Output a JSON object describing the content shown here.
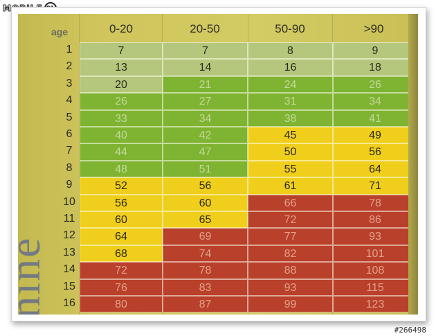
{
  "watermark": {
    "brand": "MOBILE",
    "brand_icon": "01",
    "photo_id": "#266498"
  },
  "side_text": "anine",
  "table": {
    "age_header": "age",
    "columns": [
      "0-20",
      "20-50",
      "50-90",
      ">90"
    ],
    "rows": [
      {
        "label": "1",
        "values": [
          "7",
          "7",
          "8",
          "9"
        ],
        "colors": [
          "lg",
          "lg",
          "lg",
          "lg"
        ]
      },
      {
        "label": "2",
        "values": [
          "13",
          "14",
          "16",
          "18"
        ],
        "colors": [
          "lg",
          "lg",
          "lg",
          "lg"
        ]
      },
      {
        "label": "3",
        "values": [
          "20",
          "21",
          "24",
          "26"
        ],
        "colors": [
          "lg",
          "g",
          "g",
          "g"
        ]
      },
      {
        "label": "4",
        "values": [
          "26",
          "27",
          "31",
          "34"
        ],
        "colors": [
          "g",
          "g",
          "g",
          "g"
        ]
      },
      {
        "label": "5",
        "values": [
          "33",
          "34",
          "38",
          "41"
        ],
        "colors": [
          "g",
          "g",
          "g",
          "g"
        ]
      },
      {
        "label": "6",
        "values": [
          "40",
          "42",
          "45",
          "49"
        ],
        "colors": [
          "g",
          "g",
          "y",
          "y"
        ]
      },
      {
        "label": "7",
        "values": [
          "44",
          "47",
          "50",
          "56"
        ],
        "colors": [
          "g",
          "g",
          "y",
          "y"
        ]
      },
      {
        "label": "8",
        "values": [
          "48",
          "51",
          "55",
          "64"
        ],
        "colors": [
          "g",
          "g",
          "y",
          "y"
        ]
      },
      {
        "label": "9",
        "values": [
          "52",
          "56",
          "61",
          "71"
        ],
        "colors": [
          "y",
          "y",
          "y",
          "y"
        ]
      },
      {
        "label": "10",
        "values": [
          "56",
          "60",
          "66",
          "78"
        ],
        "colors": [
          "y",
          "y",
          "r",
          "r"
        ]
      },
      {
        "label": "11",
        "values": [
          "60",
          "65",
          "72",
          "86"
        ],
        "colors": [
          "y",
          "y",
          "r",
          "r"
        ]
      },
      {
        "label": "12",
        "values": [
          "64",
          "69",
          "77",
          "93"
        ],
        "colors": [
          "y",
          "r",
          "r",
          "r"
        ]
      },
      {
        "label": "13",
        "values": [
          "68",
          "74",
          "82",
          "101"
        ],
        "colors": [
          "y",
          "r",
          "r",
          "r"
        ]
      },
      {
        "label": "14",
        "values": [
          "72",
          "78",
          "88",
          "108"
        ],
        "colors": [
          "r",
          "r",
          "r",
          "r"
        ]
      },
      {
        "label": "15",
        "values": [
          "76",
          "83",
          "93",
          "115"
        ],
        "colors": [
          "r",
          "r",
          "r",
          "r"
        ]
      },
      {
        "label": "16",
        "values": [
          "80",
          "87",
          "99",
          "123"
        ],
        "colors": [
          "r",
          "r",
          "r",
          "r"
        ]
      }
    ]
  },
  "colors": {
    "light_green": "#b5c77c",
    "green": "#7fb332",
    "yellow": "#f0cf1c",
    "red": "#b9402b"
  }
}
